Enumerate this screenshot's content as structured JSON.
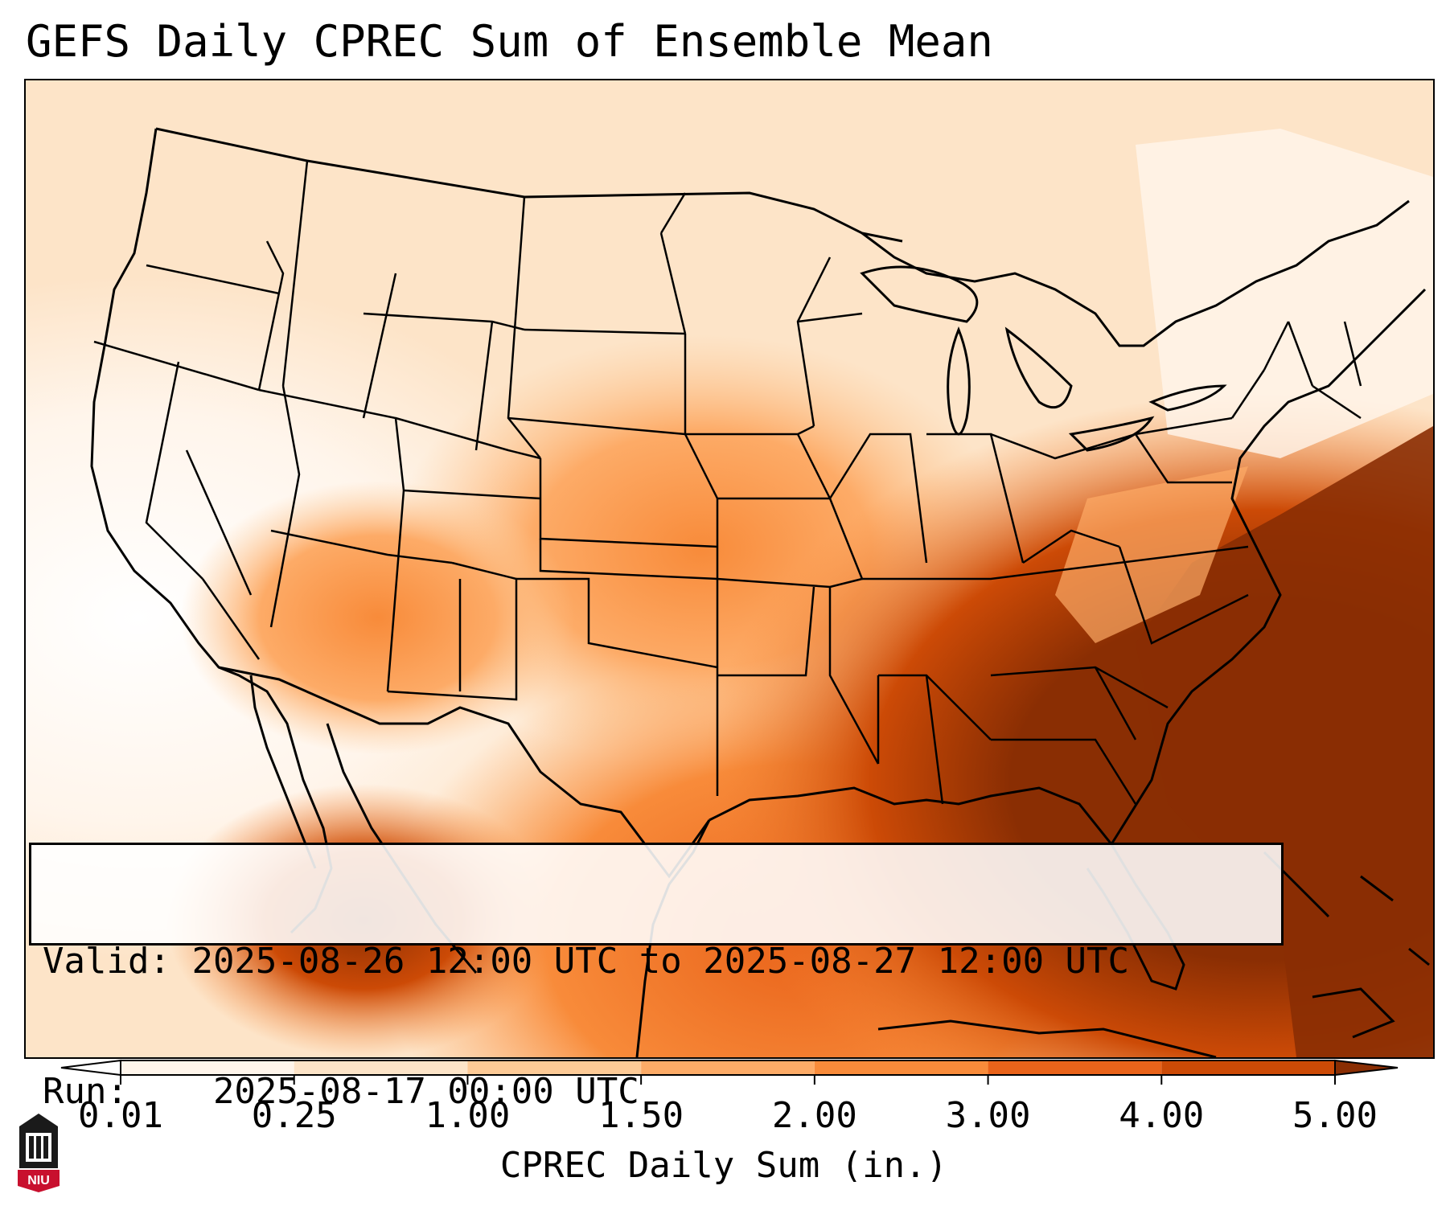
{
  "title": "GEFS Daily CPREC Sum of Ensemble Mean",
  "info": {
    "valid_label": "Valid:",
    "valid_value": "2025-08-26 12:00 UTC to 2025-08-27 12:00 UTC",
    "run_label": "Run:",
    "run_value": "2025-08-17 00:00 UTC"
  },
  "colorbar": {
    "label": "CPREC Daily Sum (in.)",
    "ticks": [
      "0.01",
      "0.25",
      "1.00",
      "1.50",
      "2.00",
      "3.00",
      "4.00",
      "5.00"
    ],
    "colors": {
      "under": "#ffffff",
      "c1": "#fff5eb",
      "c2": "#fde4c8",
      "c3": "#fdca96",
      "c4": "#fdab67",
      "c5": "#f88b3a",
      "c6": "#e9631a",
      "c7": "#cc4a06",
      "over": "#8a2e03"
    }
  },
  "logo": {
    "text": "NIU",
    "colors": {
      "red": "#c8102e",
      "black": "#1a1a1a"
    }
  }
}
